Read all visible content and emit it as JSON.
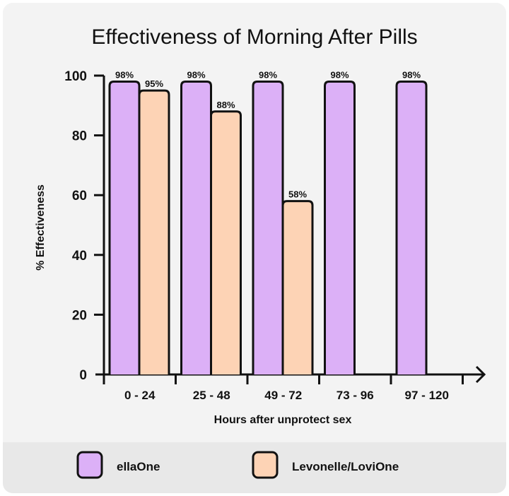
{
  "chart_data": {
    "type": "bar",
    "title": "Effectiveness of Morning After Pills",
    "xlabel": "Hours after unprotect sex",
    "ylabel": "% Effectiveness",
    "ylim": [
      0,
      100
    ],
    "yticks": [
      "0",
      "20",
      "40",
      "60",
      "80",
      "100"
    ],
    "categories": [
      "0 - 24",
      "25 - 48",
      "49 - 72",
      "73 - 96",
      "97 - 120"
    ],
    "series": [
      {
        "name": "ellaOne",
        "color": "#dcb0f7",
        "values": [
          98,
          98,
          98,
          98,
          98
        ],
        "labels": [
          "98%",
          "98%",
          "98%",
          "98%",
          "98%"
        ]
      },
      {
        "name": "Levonelle/LoviOne",
        "color": "#fdd3b5",
        "values": [
          95,
          88,
          58,
          null,
          null
        ],
        "labels": [
          "95%",
          "88%",
          "58%",
          null,
          null
        ]
      }
    ],
    "grid": false,
    "legend_position": "bottom"
  }
}
